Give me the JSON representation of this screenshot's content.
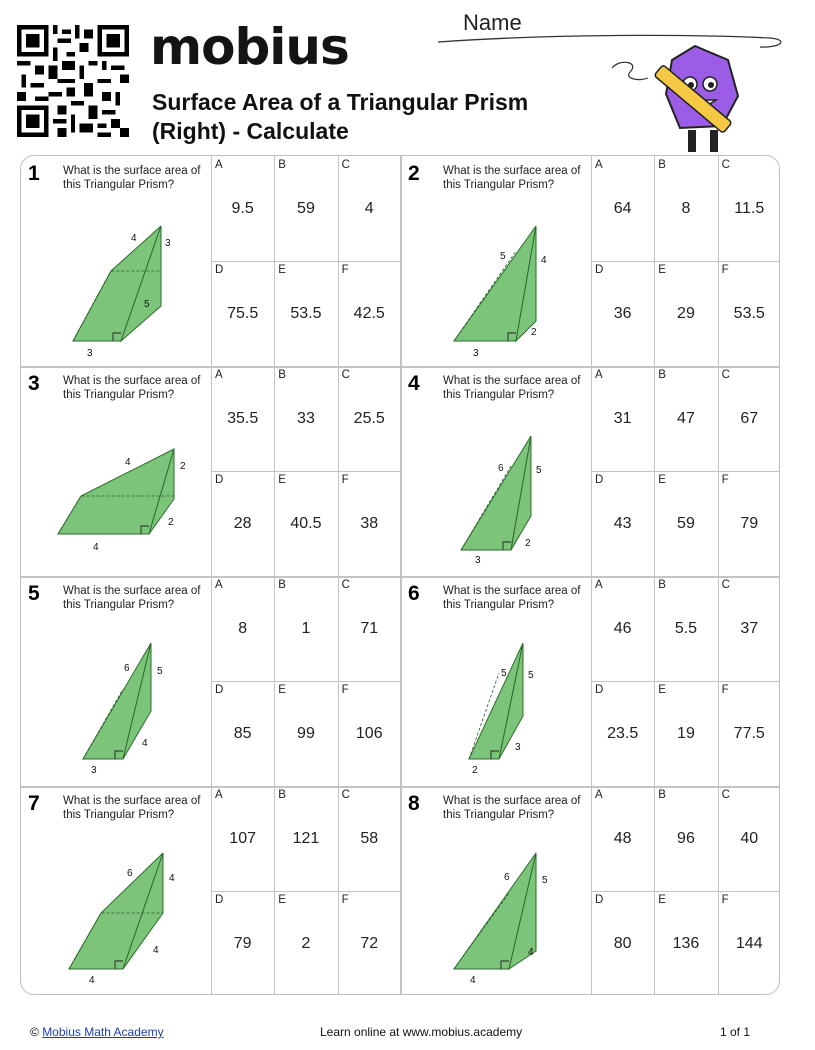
{
  "header": {
    "logo_text": "mobius",
    "title_line1": "Surface Area of a Triangular Prism",
    "title_line2": "(Right) - Calculate",
    "name_label": "Name"
  },
  "question_prompt": "What is the surface area of this Triangular Prism?",
  "questions": [
    {
      "num": "1",
      "labels": [
        "4",
        "3",
        "5",
        "3"
      ],
      "options": [
        {
          "l": "A",
          "v": "9.5"
        },
        {
          "l": "B",
          "v": "59"
        },
        {
          "l": "C",
          "v": "4"
        },
        {
          "l": "D",
          "v": "75.5"
        },
        {
          "l": "E",
          "v": "53.5"
        },
        {
          "l": "F",
          "v": "42.5"
        }
      ]
    },
    {
      "num": "2",
      "labels": [
        "5",
        "4",
        "2",
        "3"
      ],
      "options": [
        {
          "l": "A",
          "v": "64"
        },
        {
          "l": "B",
          "v": "8"
        },
        {
          "l": "C",
          "v": "11.5"
        },
        {
          "l": "D",
          "v": "36"
        },
        {
          "l": "E",
          "v": "29"
        },
        {
          "l": "F",
          "v": "53.5"
        }
      ]
    },
    {
      "num": "3",
      "labels": [
        "4",
        "2",
        "2",
        "4"
      ],
      "options": [
        {
          "l": "A",
          "v": "35.5"
        },
        {
          "l": "B",
          "v": "33"
        },
        {
          "l": "C",
          "v": "25.5"
        },
        {
          "l": "D",
          "v": "28"
        },
        {
          "l": "E",
          "v": "40.5"
        },
        {
          "l": "F",
          "v": "38"
        }
      ]
    },
    {
      "num": "4",
      "labels": [
        "6",
        "5",
        "2",
        "3"
      ],
      "options": [
        {
          "l": "A",
          "v": "31"
        },
        {
          "l": "B",
          "v": "47"
        },
        {
          "l": "C",
          "v": "67"
        },
        {
          "l": "D",
          "v": "43"
        },
        {
          "l": "E",
          "v": "59"
        },
        {
          "l": "F",
          "v": "79"
        }
      ]
    },
    {
      "num": "5",
      "labels": [
        "6",
        "5",
        "4",
        "3"
      ],
      "options": [
        {
          "l": "A",
          "v": "8"
        },
        {
          "l": "B",
          "v": "1"
        },
        {
          "l": "C",
          "v": "71"
        },
        {
          "l": "D",
          "v": "85"
        },
        {
          "l": "E",
          "v": "99"
        },
        {
          "l": "F",
          "v": "106"
        }
      ]
    },
    {
      "num": "6",
      "labels": [
        "5",
        "5",
        "3",
        "2"
      ],
      "options": [
        {
          "l": "A",
          "v": "46"
        },
        {
          "l": "B",
          "v": "5.5"
        },
        {
          "l": "C",
          "v": "37"
        },
        {
          "l": "D",
          "v": "23.5"
        },
        {
          "l": "E",
          "v": "19"
        },
        {
          "l": "F",
          "v": "77.5"
        }
      ]
    },
    {
      "num": "7",
      "labels": [
        "6",
        "4",
        "4",
        "4"
      ],
      "options": [
        {
          "l": "A",
          "v": "107"
        },
        {
          "l": "B",
          "v": "121"
        },
        {
          "l": "C",
          "v": "58"
        },
        {
          "l": "D",
          "v": "79"
        },
        {
          "l": "E",
          "v": "2"
        },
        {
          "l": "F",
          "v": "72"
        }
      ]
    },
    {
      "num": "8",
      "labels": [
        "6",
        "5",
        "4",
        "4"
      ],
      "options": [
        {
          "l": "A",
          "v": "48"
        },
        {
          "l": "B",
          "v": "96"
        },
        {
          "l": "C",
          "v": "40"
        },
        {
          "l": "D",
          "v": "80"
        },
        {
          "l": "E",
          "v": "136"
        },
        {
          "l": "F",
          "v": "144"
        }
      ]
    }
  ],
  "footer": {
    "copyright": "©",
    "academy_link": "Mobius Math Academy",
    "learn_online": "Learn online at www.mobius.academy",
    "page": "1 of 1"
  },
  "colors": {
    "prism_fill": "#7cc47a",
    "prism_stroke": "#2a6e2a",
    "grid_line": "#c4c4c4"
  }
}
